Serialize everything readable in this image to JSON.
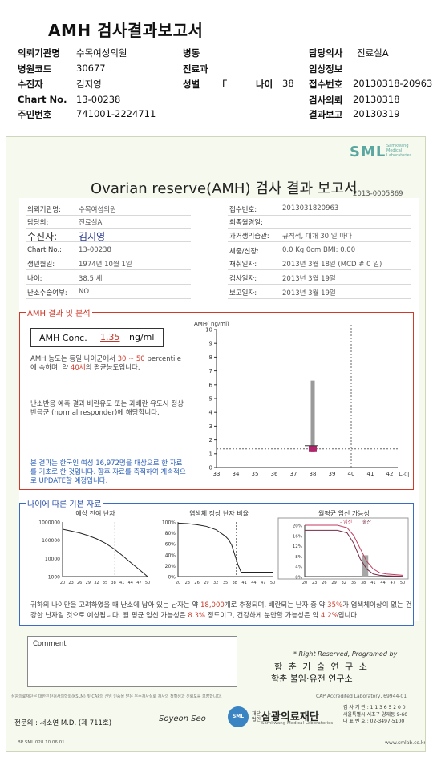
{
  "header": {
    "title": "AMH 검사결과보고서",
    "rows": [
      [
        {
          "l": "의뢰기관명",
          "v": "수목여성의원"
        },
        {
          "l": "병동",
          "v": ""
        },
        {
          "l": "담당의사",
          "v": "진료실A"
        }
      ],
      [
        {
          "l": "병원코드",
          "v": "30677"
        },
        {
          "l": "진료과",
          "v": ""
        },
        {
          "l": "임상정보",
          "v": ""
        }
      ],
      [
        {
          "l": "수진자",
          "v": "김지영"
        },
        {
          "l": "성별",
          "v": "F"
        },
        {
          "l": "나이",
          "v": "38"
        },
        {
          "l": "접수번호",
          "v": "20130318-20963"
        }
      ],
      [
        {
          "l": "Chart No.",
          "v": "13-00238"
        },
        {
          "l": "검사의뢰",
          "v": "20130318"
        }
      ],
      [
        {
          "l": "주민번호",
          "v": "741001-2224711"
        },
        {
          "l": "결과보고",
          "v": "20130319"
        }
      ]
    ]
  },
  "report": {
    "logo": "SML",
    "logo_sub": "Samkwang Medical Laboratories",
    "title": "Ovarian reserve(AMH) 검사 결과 보고서",
    "report_no": "2013-0005869",
    "left": [
      {
        "l": "의뢰기관명:",
        "v": "수목여성의원"
      },
      {
        "l": "담당의:",
        "v": "진료실A"
      },
      {
        "l": "수진자:",
        "v": "김지영"
      },
      {
        "l": "Chart No.:",
        "v": "13-00238"
      },
      {
        "l": "생년월일:",
        "v": "1974년 10월 1일"
      },
      {
        "l": "나이:",
        "v": "38.5 세"
      },
      {
        "l": "난소수술여부:",
        "v": "NO"
      }
    ],
    "right": [
      {
        "l": "접수번호:",
        "v": "2013031820963"
      },
      {
        "l": "최종월경일:",
        "v": ""
      },
      {
        "l": "과거생리습관:",
        "v": "규칙적,  대개    30 일 마다"
      },
      {
        "l": "체중/신장:",
        "v": "0.0  Kg        0cm    BMI:   0.00"
      },
      {
        "l": "채취일자:",
        "v": "2013년 3월 18일    (MCD #  0 일)"
      },
      {
        "l": "검사일자:",
        "v": "2013년 3월 19일"
      },
      {
        "l": "보고일자:",
        "v": "2013년 3월 19일"
      }
    ],
    "amh": {
      "section_label": "AMH 결과 및 분석",
      "conc_label": "AMH Conc.",
      "conc_value": "1.35",
      "conc_unit": "ng/ml",
      "para1_a": "AMH 농도는 동일 나이군에서",
      "para1_range": "30 ~  50",
      "para1_b": "percentile에 속하며, 약",
      "para1_age": "40세",
      "para1_c": "의 평균농도입니다.",
      "para2": "난소반응 예측 결과 배란유도 또는 과배란 유도시 정상반응군 (normal responder)에 해당합니다.",
      "note": "본 결과는 한국인 여성 16,972명을 대상으로 한 자료를 기초로 한 것입니다. 향후 자료를 축적하여 계속적으로 UPDATE할 예정입니다."
    },
    "age_section": {
      "label": "나이에 따른 기본 자료",
      "chart1_title": "예상 잔여 난자",
      "chart2_title": "염색체 정상 난자 비율",
      "chart3_title": "월평균 임신 가능성",
      "chart3_legend_a": "- 임신",
      "chart3_legend_b": "출산",
      "summary_a": "귀하의 나이만을 고려하였을 때 난소에 남아 있는 난자는 약",
      "summary_eggs": "18,000",
      "summary_b": "개로 추정되며, 배란되는 난자 중 약",
      "summary_pct": "35%",
      "summary_c": "가 염색체이상이 없는 건강한 난자일 것으로 예상됩니다. 월 평균 임신 가능성은",
      "summary_preg": "8.3%",
      "summary_d": "정도이고, 건강하게 분만할 가능성은 약",
      "summary_birth": "4.2%",
      "summary_e": "입니다."
    },
    "comment_label": "Comment",
    "rights": "* Right Reserved, Programed by",
    "institute1": "함 춘 기 술 연 구 소",
    "institute2": "함춘 불임·유전 연구소",
    "cert_left": "삼광의료재단은 대한진단검사의학회(KSLM) 및 CAP의 신임 인증을 받은 우수검사실로 검사의 정확성과 신뢰도를 보장합니다.",
    "cert_right": "CAP Accredited Laboratory, 69944-01",
    "doctor_line": "전문의 : 서소연 M.D. (제 711호)",
    "signature": "Soyeon Seo",
    "foundation_logo": "SML",
    "foundation_pre": "재단\n법인",
    "foundation_name": "삼광의료재단",
    "foundation_en": "Samkwang Medical Laboratories",
    "foundation_info": [
      "검 사 기 관 : 1 1 3 6 5 2 0 0",
      "서울특별시 서초구 양재동 9-60",
      "대 표 번 호 : 02-3497-5100"
    ],
    "bp_code": "BP  SML  028  10.06.01",
    "site": "www.smlab.co.kr"
  },
  "chart_data": [
    {
      "type": "scatter",
      "title": "",
      "ylabel": "AMH( ng/ml)",
      "xlabel": "나이",
      "xlim": [
        33,
        42
      ],
      "ylim": [
        0,
        10
      ],
      "x_ticks": [
        33,
        34,
        35,
        36,
        37,
        38,
        39,
        40,
        41,
        42
      ],
      "y_ticks": [
        0,
        1,
        2,
        3,
        4,
        5,
        6,
        7,
        8,
        9,
        10
      ],
      "range_bar": {
        "x": 38,
        "y_low": 1.1,
        "y_high": 6.3
      },
      "point": {
        "x": 38.5,
        "y": 1.35
      },
      "reference_h": 1.35,
      "reference_v": 40
    },
    {
      "type": "line",
      "title": "예상 잔여 난자",
      "yscale": "log",
      "ylim": [
        1000,
        1000000
      ],
      "y_ticks": [
        "1000000",
        "100000",
        "10000",
        "1000"
      ],
      "x_ticks": [
        20,
        23,
        26,
        29,
        32,
        35,
        38,
        41,
        44,
        47,
        50
      ],
      "x": [
        20,
        23,
        26,
        29,
        32,
        35,
        38,
        41,
        44,
        47,
        50
      ],
      "values": [
        400000,
        320000,
        250000,
        180000,
        120000,
        70000,
        35000,
        15000,
        6000,
        2500,
        1000
      ],
      "marker_x": 38.5
    },
    {
      "type": "line",
      "title": "염색체 정상 난자 비율",
      "ylim": [
        0,
        100
      ],
      "y_ticks": [
        "100%",
        "80%",
        "60%",
        "40%",
        "20%",
        "0%"
      ],
      "x_ticks": [
        20,
        23,
        26,
        29,
        32,
        35,
        38,
        41,
        44,
        47,
        50
      ],
      "x": [
        20,
        23,
        26,
        29,
        32,
        35,
        36,
        37,
        38,
        39,
        40,
        42,
        50
      ],
      "values": [
        98,
        97,
        95,
        92,
        86,
        74,
        68,
        58,
        40,
        22,
        8,
        8,
        8
      ],
      "marker_x": 38.5
    },
    {
      "type": "line",
      "title": "월평균 임신 가능성",
      "ylim": [
        0,
        20
      ],
      "y_ticks": [
        "20%",
        "18%",
        "16%",
        "14%",
        "12%",
        "10%",
        "8%",
        "6%",
        "4%",
        "2%",
        "0%"
      ],
      "x_ticks": [
        20,
        23,
        26,
        29,
        32,
        35,
        38,
        41,
        44,
        47,
        50
      ],
      "series": [
        {
          "name": "임신",
          "x": [
            20,
            30,
            33,
            35,
            37,
            39,
            41,
            43,
            45,
            50
          ],
          "values": [
            20,
            20,
            19,
            16,
            11,
            6,
            3,
            1.5,
            1,
            0.5
          ]
        },
        {
          "name": "출산",
          "x": [
            20,
            30,
            33,
            35,
            37,
            39,
            41,
            43,
            45,
            50
          ],
          "values": [
            18,
            18,
            17,
            13,
            7,
            3,
            1,
            0.5,
            0.3,
            0.1
          ]
        }
      ],
      "bar_x": 38.5,
      "bar_value": 8.3
    }
  ]
}
